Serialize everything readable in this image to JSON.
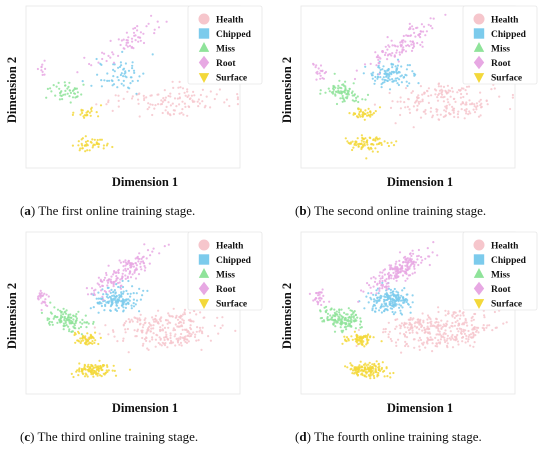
{
  "colors": {
    "Health": "#f6c6cc",
    "Chipped": "#7ccbec",
    "Miss": "#8fe39a",
    "Root": "#e7a8e3",
    "Surface": "#f3d83a"
  },
  "marker_shapes": {
    "Health": "circle",
    "Chipped": "square",
    "Miss": "triangle-up",
    "Root": "diamond",
    "Surface": "triangle-down"
  },
  "chart_data": [
    {
      "type": "scatter",
      "xlabel": "Dimension 1",
      "ylabel": "Dimension 2",
      "legend_position": "top-right",
      "grid": false,
      "xlim": [
        0,
        100
      ],
      "ylim": [
        0,
        100
      ],
      "caption": {
        "letter": "a",
        "text": "The first online training stage."
      },
      "series": [
        {
          "name": "Health",
          "clusters": [
            {
              "cx": 62,
              "cy": 44,
              "sx": 13,
              "sy": 3.5,
              "angle": 10,
              "n": 70
            },
            {
              "cx": 72,
              "cy": 37,
              "sx": 12,
              "sy": 3,
              "angle": 10,
              "n": 50
            }
          ]
        },
        {
          "name": "Chipped",
          "clusters": [
            {
              "cx": 43,
              "cy": 58,
              "sx": 6,
              "sy": 5,
              "angle": 0,
              "n": 60
            }
          ]
        },
        {
          "name": "Miss",
          "clusters": [
            {
              "cx": 20,
              "cy": 47,
              "sx": 5,
              "sy": 3,
              "angle": -20,
              "n": 45
            }
          ]
        },
        {
          "name": "Root",
          "clusters": [
            {
              "cx": 47,
              "cy": 77,
              "sx": 11,
              "sy": 3,
              "angle": 40,
              "n": 60
            },
            {
              "cx": 8,
              "cy": 62,
              "sx": 1.2,
              "sy": 2.5,
              "angle": 0,
              "n": 10
            }
          ]
        },
        {
          "name": "Surface",
          "clusters": [
            {
              "cx": 29,
              "cy": 34,
              "sx": 3,
              "sy": 2,
              "angle": 0,
              "n": 25
            },
            {
              "cx": 30,
              "cy": 15,
              "sx": 5,
              "sy": 2.2,
              "angle": 0,
              "n": 45
            }
          ]
        }
      ]
    },
    {
      "type": "scatter",
      "xlabel": "Dimension 1",
      "ylabel": "Dimension 2",
      "legend_position": "top-right",
      "grid": false,
      "xlim": [
        0,
        100
      ],
      "ylim": [
        0,
        100
      ],
      "caption": {
        "letter": "b",
        "text": "The second online training stage."
      },
      "series": [
        {
          "name": "Health",
          "clusters": [
            {
              "cx": 62,
              "cy": 44,
              "sx": 12,
              "sy": 3.5,
              "angle": 12,
              "n": 110
            },
            {
              "cx": 72,
              "cy": 36,
              "sx": 11,
              "sy": 3,
              "angle": 12,
              "n": 80
            }
          ]
        },
        {
          "name": "Chipped",
          "clusters": [
            {
              "cx": 43,
              "cy": 58,
              "sx": 5,
              "sy": 4,
              "angle": 0,
              "n": 110
            }
          ]
        },
        {
          "name": "Miss",
          "clusters": [
            {
              "cx": 20,
              "cy": 46,
              "sx": 5,
              "sy": 3,
              "angle": -20,
              "n": 80
            }
          ]
        },
        {
          "name": "Root",
          "clusters": [
            {
              "cx": 47,
              "cy": 76,
              "sx": 10,
              "sy": 3,
              "angle": 42,
              "n": 110
            },
            {
              "cx": 9,
              "cy": 60,
              "sx": 1.5,
              "sy": 3,
              "angle": 0,
              "n": 20
            }
          ]
        },
        {
          "name": "Surface",
          "clusters": [
            {
              "cx": 29,
              "cy": 34,
              "sx": 3,
              "sy": 2,
              "angle": 0,
              "n": 40
            },
            {
              "cx": 32,
              "cy": 15,
              "sx": 5,
              "sy": 2.2,
              "angle": 0,
              "n": 80
            }
          ]
        }
      ]
    },
    {
      "type": "scatter",
      "xlabel": "Dimension 1",
      "ylabel": "Dimension 2",
      "legend_position": "top-right",
      "grid": false,
      "xlim": [
        0,
        100
      ],
      "ylim": [
        0,
        100
      ],
      "caption": {
        "letter": "c",
        "text": "The third online training stage."
      },
      "series": [
        {
          "name": "Health",
          "clusters": [
            {
              "cx": 62,
              "cy": 44,
              "sx": 12,
              "sy": 3.5,
              "angle": 12,
              "n": 150
            },
            {
              "cx": 70,
              "cy": 35,
              "sx": 11,
              "sy": 3,
              "angle": 12,
              "n": 110
            }
          ]
        },
        {
          "name": "Chipped",
          "clusters": [
            {
              "cx": 42,
              "cy": 58,
              "sx": 5,
              "sy": 4,
              "angle": 0,
              "n": 150
            }
          ]
        },
        {
          "name": "Miss",
          "clusters": [
            {
              "cx": 19,
              "cy": 46,
              "sx": 5,
              "sy": 3,
              "angle": -20,
              "n": 110
            }
          ]
        },
        {
          "name": "Root",
          "clusters": [
            {
              "cx": 46,
              "cy": 76,
              "sx": 10,
              "sy": 3,
              "angle": 42,
              "n": 150
            },
            {
              "cx": 8,
              "cy": 59,
              "sx": 1.5,
              "sy": 3,
              "angle": 0,
              "n": 25
            }
          ]
        },
        {
          "name": "Surface",
          "clusters": [
            {
              "cx": 28,
              "cy": 34,
              "sx": 3,
              "sy": 2,
              "angle": 0,
              "n": 55
            },
            {
              "cx": 31,
              "cy": 15,
              "sx": 5,
              "sy": 2.2,
              "angle": 0,
              "n": 110
            }
          ]
        }
      ]
    },
    {
      "type": "scatter",
      "xlabel": "Dimension 1",
      "ylabel": "Dimension 2",
      "legend_position": "top-right",
      "grid": false,
      "xlim": [
        0,
        100
      ],
      "ylim": [
        0,
        100
      ],
      "caption": {
        "letter": "d",
        "text": "The fourth online training stage."
      },
      "series": [
        {
          "name": "Health",
          "clusters": [
            {
              "cx": 62,
              "cy": 44,
              "sx": 12,
              "sy": 3.5,
              "angle": 12,
              "n": 190
            },
            {
              "cx": 70,
              "cy": 35,
              "sx": 11,
              "sy": 3,
              "angle": 12,
              "n": 140
            }
          ]
        },
        {
          "name": "Chipped",
          "clusters": [
            {
              "cx": 42,
              "cy": 58,
              "sx": 5,
              "sy": 4,
              "angle": 0,
              "n": 190
            }
          ]
        },
        {
          "name": "Miss",
          "clusters": [
            {
              "cx": 19,
              "cy": 46,
              "sx": 5,
              "sy": 3,
              "angle": -20,
              "n": 140
            }
          ]
        },
        {
          "name": "Root",
          "clusters": [
            {
              "cx": 46,
              "cy": 76,
              "sx": 10,
              "sy": 3,
              "angle": 42,
              "n": 190
            },
            {
              "cx": 8,
              "cy": 59,
              "sx": 1.5,
              "sy": 3,
              "angle": 0,
              "n": 30
            }
          ]
        },
        {
          "name": "Surface",
          "clusters": [
            {
              "cx": 28,
              "cy": 34,
              "sx": 3,
              "sy": 2,
              "angle": 0,
              "n": 70
            },
            {
              "cx": 31,
              "cy": 15,
              "sx": 5,
              "sy": 2.2,
              "angle": 0,
              "n": 140
            }
          ]
        }
      ]
    }
  ]
}
